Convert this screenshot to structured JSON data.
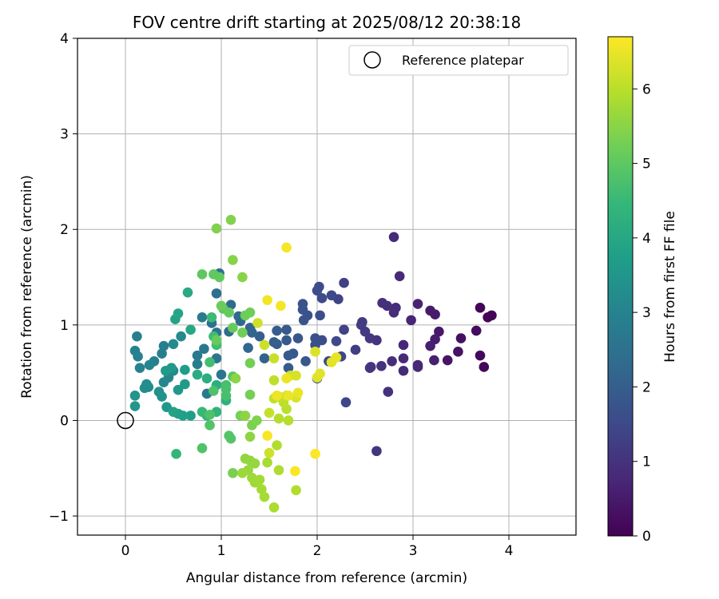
{
  "chart_data": {
    "type": "scatter",
    "title": "FOV centre drift starting at 2025/08/12 20:38:18",
    "xlabel": "Angular distance from reference (arcmin)",
    "ylabel": "Rotation from reference (arcmin)",
    "xlim": [
      -0.5,
      4.7
    ],
    "ylim": [
      -1.2,
      4.0
    ],
    "xticks": [
      "0",
      "1",
      "2",
      "3",
      "4"
    ],
    "yticks": [
      "−1",
      "0",
      "1",
      "2",
      "3",
      "4"
    ],
    "grid": true,
    "legend": {
      "placement": "top-right",
      "entries": [
        "Reference platepar"
      ]
    },
    "reference_point": {
      "x": 0,
      "y": 0
    },
    "colorbar": {
      "label": "Hours from first FF file",
      "range": [
        0,
        6.7
      ],
      "ticks": [
        "0",
        "1",
        "2",
        "3",
        "4",
        "5",
        "6"
      ],
      "colormap": [
        "#440154",
        "#482777",
        "#3e4989",
        "#31688e",
        "#26828e",
        "#1f9e89",
        "#35b779",
        "#6ece58",
        "#b5de2b",
        "#fde725"
      ]
    },
    "points": [
      {
        "x": 3.82,
        "y": 1.1,
        "t": 0.05
      },
      {
        "x": 3.78,
        "y": 1.08,
        "t": 0.08
      },
      {
        "x": 3.7,
        "y": 1.18,
        "t": 0.1
      },
      {
        "x": 3.74,
        "y": 0.56,
        "t": 0.12
      },
      {
        "x": 3.7,
        "y": 0.68,
        "t": 0.15
      },
      {
        "x": 3.66,
        "y": 0.94,
        "t": 0.2
      },
      {
        "x": 3.5,
        "y": 0.86,
        "t": 0.3
      },
      {
        "x": 3.47,
        "y": 0.72,
        "t": 0.35
      },
      {
        "x": 3.36,
        "y": 0.63,
        "t": 0.4
      },
      {
        "x": 3.27,
        "y": 0.93,
        "t": 0.45
      },
      {
        "x": 3.23,
        "y": 1.11,
        "t": 0.48
      },
      {
        "x": 3.18,
        "y": 1.15,
        "t": 0.5
      },
      {
        "x": 3.23,
        "y": 0.85,
        "t": 0.55
      },
      {
        "x": 3.18,
        "y": 0.78,
        "t": 0.6
      },
      {
        "x": 3.22,
        "y": 0.63,
        "t": 0.62
      },
      {
        "x": 3.05,
        "y": 1.22,
        "t": 0.66
      },
      {
        "x": 2.98,
        "y": 1.05,
        "t": 0.7
      },
      {
        "x": 3.05,
        "y": 0.58,
        "t": 0.72
      },
      {
        "x": 3.05,
        "y": 0.56,
        "t": 0.74
      },
      {
        "x": 2.9,
        "y": 0.79,
        "t": 0.76
      },
      {
        "x": 2.9,
        "y": 0.65,
        "t": 0.78
      },
      {
        "x": 2.9,
        "y": 0.52,
        "t": 0.8
      },
      {
        "x": 2.8,
        "y": 1.92,
        "t": 0.82
      },
      {
        "x": 2.86,
        "y": 1.51,
        "t": 0.84
      },
      {
        "x": 2.82,
        "y": 1.18,
        "t": 0.86
      },
      {
        "x": 2.8,
        "y": 1.13,
        "t": 0.88
      },
      {
        "x": 2.78,
        "y": 0.62,
        "t": 0.9
      },
      {
        "x": 2.68,
        "y": 1.23,
        "t": 0.92
      },
      {
        "x": 2.73,
        "y": 1.2,
        "t": 0.94
      },
      {
        "x": 2.67,
        "y": 0.57,
        "t": 0.96
      },
      {
        "x": 2.74,
        "y": 0.3,
        "t": 0.98
      },
      {
        "x": 2.62,
        "y": 0.84,
        "t": 1.0
      },
      {
        "x": 2.56,
        "y": 0.56,
        "t": 1.02
      },
      {
        "x": 2.55,
        "y": 0.55,
        "t": 1.05
      },
      {
        "x": 2.62,
        "y": -0.32,
        "t": 1.08
      },
      {
        "x": 2.55,
        "y": 0.86,
        "t": 1.12
      },
      {
        "x": 2.5,
        "y": 0.93,
        "t": 1.15
      },
      {
        "x": 2.47,
        "y": 1.03,
        "t": 1.18
      },
      {
        "x": 2.46,
        "y": 1.0,
        "t": 1.2
      },
      {
        "x": 2.4,
        "y": 0.74,
        "t": 1.24
      },
      {
        "x": 2.28,
        "y": 1.44,
        "t": 1.3
      },
      {
        "x": 2.28,
        "y": 0.95,
        "t": 1.35
      },
      {
        "x": 2.22,
        "y": 1.27,
        "t": 1.38
      },
      {
        "x": 2.25,
        "y": 0.67,
        "t": 1.4
      },
      {
        "x": 2.3,
        "y": 0.19,
        "t": 1.45
      },
      {
        "x": 2.2,
        "y": 0.83,
        "t": 1.48
      },
      {
        "x": 2.15,
        "y": 1.31,
        "t": 1.5
      },
      {
        "x": 2.12,
        "y": 0.62,
        "t": 1.52
      },
      {
        "x": 2.05,
        "y": 1.28,
        "t": 1.54
      },
      {
        "x": 2.02,
        "y": 1.4,
        "t": 1.56
      },
      {
        "x": 2.0,
        "y": 1.36,
        "t": 1.58
      },
      {
        "x": 2.03,
        "y": 1.1,
        "t": 1.6
      },
      {
        "x": 2.05,
        "y": 0.84,
        "t": 1.62
      },
      {
        "x": 1.98,
        "y": 0.86,
        "t": 1.64
      },
      {
        "x": 1.98,
        "y": 0.79,
        "t": 1.66
      },
      {
        "x": 2.0,
        "y": 0.44,
        "t": 1.68
      },
      {
        "x": 1.9,
        "y": 1.1,
        "t": 1.7
      },
      {
        "x": 1.85,
        "y": 1.22,
        "t": 1.72
      },
      {
        "x": 1.85,
        "y": 1.16,
        "t": 1.74
      },
      {
        "x": 1.86,
        "y": 1.05,
        "t": 1.76
      },
      {
        "x": 1.8,
        "y": 0.86,
        "t": 1.8
      },
      {
        "x": 1.88,
        "y": 0.62,
        "t": 1.82
      },
      {
        "x": 1.75,
        "y": 0.7,
        "t": 1.85
      },
      {
        "x": 1.68,
        "y": 0.95,
        "t": 1.88
      },
      {
        "x": 1.68,
        "y": 0.84,
        "t": 1.9
      },
      {
        "x": 1.7,
        "y": 0.68,
        "t": 1.92
      },
      {
        "x": 1.7,
        "y": 0.55,
        "t": 1.94
      },
      {
        "x": 1.58,
        "y": 0.94,
        "t": 1.96
      },
      {
        "x": 1.58,
        "y": 0.8,
        "t": 1.98
      },
      {
        "x": 1.55,
        "y": 0.82,
        "t": 2.0
      },
      {
        "x": 1.4,
        "y": 0.88,
        "t": 2.05
      },
      {
        "x": 1.45,
        "y": 0.65,
        "t": 2.1
      },
      {
        "x": 1.32,
        "y": 0.92,
        "t": 2.15
      },
      {
        "x": 1.3,
        "y": 0.97,
        "t": 2.18
      },
      {
        "x": 1.28,
        "y": 0.76,
        "t": 2.2
      },
      {
        "x": 1.2,
        "y": 1.04,
        "t": 2.25
      },
      {
        "x": 1.18,
        "y": 1.09,
        "t": 2.28
      },
      {
        "x": 1.1,
        "y": 1.21,
        "t": 2.3
      },
      {
        "x": 1.08,
        "y": 0.93,
        "t": 2.35
      },
      {
        "x": 0.98,
        "y": 1.54,
        "t": 2.4
      },
      {
        "x": 0.95,
        "y": 1.33,
        "t": 2.45
      },
      {
        "x": 0.9,
        "y": 1.02,
        "t": 2.5
      },
      {
        "x": 0.95,
        "y": 0.92,
        "t": 2.55
      },
      {
        "x": 1.0,
        "y": 0.48,
        "t": 2.6
      },
      {
        "x": 0.95,
        "y": 0.65,
        "t": 2.62
      },
      {
        "x": 0.85,
        "y": 0.28,
        "t": 2.65
      },
      {
        "x": 0.82,
        "y": 0.75,
        "t": 2.7
      },
      {
        "x": 0.75,
        "y": 0.68,
        "t": 2.75
      },
      {
        "x": 0.75,
        "y": 0.59,
        "t": 2.8
      },
      {
        "x": 0.8,
        "y": 1.08,
        "t": 2.82
      },
      {
        "x": 0.4,
        "y": 0.78,
        "t": 2.85
      },
      {
        "x": 0.38,
        "y": 0.7,
        "t": 2.88
      },
      {
        "x": 0.3,
        "y": 0.62,
        "t": 2.9
      },
      {
        "x": 0.12,
        "y": 0.88,
        "t": 2.92
      },
      {
        "x": 0.1,
        "y": 0.73,
        "t": 2.95
      },
      {
        "x": 0.13,
        "y": 0.67,
        "t": 2.98
      },
      {
        "x": 0.15,
        "y": 0.55,
        "t": 3.0
      },
      {
        "x": 0.25,
        "y": 0.58,
        "t": 3.05
      },
      {
        "x": 0.4,
        "y": 0.4,
        "t": 3.1
      },
      {
        "x": 0.45,
        "y": 0.45,
        "t": 3.12
      },
      {
        "x": 0.5,
        "y": 0.52,
        "t": 3.15
      },
      {
        "x": 0.58,
        "y": 0.88,
        "t": 3.18
      },
      {
        "x": 0.5,
        "y": 0.8,
        "t": 3.2
      },
      {
        "x": 0.2,
        "y": 0.34,
        "t": 3.25
      },
      {
        "x": 0.24,
        "y": 0.35,
        "t": 3.28
      },
      {
        "x": 0.22,
        "y": 0.38,
        "t": 3.3
      },
      {
        "x": 0.35,
        "y": 0.3,
        "t": 3.35
      },
      {
        "x": 0.38,
        "y": 0.25,
        "t": 3.4
      },
      {
        "x": 0.1,
        "y": 0.26,
        "t": 3.45
      },
      {
        "x": 0.1,
        "y": 0.15,
        "t": 3.5
      },
      {
        "x": 0.43,
        "y": 0.14,
        "t": 3.52
      },
      {
        "x": 0.55,
        "y": 0.32,
        "t": 3.55
      },
      {
        "x": 0.48,
        "y": 0.55,
        "t": 3.6
      },
      {
        "x": 0.42,
        "y": 0.52,
        "t": 3.62
      },
      {
        "x": 0.62,
        "y": 0.38,
        "t": 3.65
      },
      {
        "x": 0.62,
        "y": 0.53,
        "t": 3.7
      },
      {
        "x": 0.68,
        "y": 0.05,
        "t": 3.75
      },
      {
        "x": 0.6,
        "y": 0.05,
        "t": 3.78
      },
      {
        "x": 0.55,
        "y": 0.07,
        "t": 3.8
      },
      {
        "x": 0.5,
        "y": 0.09,
        "t": 3.85
      },
      {
        "x": 0.52,
        "y": 1.06,
        "t": 3.9
      },
      {
        "x": 0.55,
        "y": 1.12,
        "t": 3.92
      },
      {
        "x": 0.68,
        "y": 0.95,
        "t": 4.0
      },
      {
        "x": 0.65,
        "y": 1.34,
        "t": 4.05
      },
      {
        "x": 0.75,
        "y": 0.48,
        "t": 4.1
      },
      {
        "x": 0.85,
        "y": 0.44,
        "t": 4.15
      },
      {
        "x": 0.95,
        "y": 0.37,
        "t": 4.2
      },
      {
        "x": 1.05,
        "y": 0.21,
        "t": 4.25
      },
      {
        "x": 0.85,
        "y": 0.05,
        "t": 4.3
      },
      {
        "x": 0.95,
        "y": 0.09,
        "t": 4.35
      },
      {
        "x": 0.53,
        "y": -0.35,
        "t": 4.4
      },
      {
        "x": 0.8,
        "y": 0.09,
        "t": 4.5
      },
      {
        "x": 0.9,
        "y": 1.08,
        "t": 4.55
      },
      {
        "x": 0.92,
        "y": 0.88,
        "t": 4.6
      },
      {
        "x": 0.95,
        "y": 0.79,
        "t": 4.62
      },
      {
        "x": 0.88,
        "y": 0.61,
        "t": 4.65
      },
      {
        "x": 1.05,
        "y": 0.37,
        "t": 4.7
      },
      {
        "x": 1.05,
        "y": 0.26,
        "t": 4.72
      },
      {
        "x": 1.05,
        "y": 0.33,
        "t": 4.75
      },
      {
        "x": 0.92,
        "y": 0.31,
        "t": 4.78
      },
      {
        "x": 0.88,
        "y": 0.06,
        "t": 4.8
      },
      {
        "x": 0.8,
        "y": -0.29,
        "t": 4.82
      },
      {
        "x": 0.88,
        "y": -0.05,
        "t": 4.85
      },
      {
        "x": 1.08,
        "y": -0.16,
        "t": 4.88
      },
      {
        "x": 1.1,
        "y": -0.19,
        "t": 4.9
      },
      {
        "x": 1.12,
        "y": 0.46,
        "t": 4.92
      },
      {
        "x": 1.02,
        "y": 1.17,
        "t": 4.95
      },
      {
        "x": 0.8,
        "y": 1.53,
        "t": 5.0
      },
      {
        "x": 0.92,
        "y": 1.53,
        "t": 5.02
      },
      {
        "x": 0.98,
        "y": 1.5,
        "t": 5.05
      },
      {
        "x": 1.08,
        "y": 1.13,
        "t": 5.08
      },
      {
        "x": 1.12,
        "y": 0.97,
        "t": 5.1
      },
      {
        "x": 0.95,
        "y": 0.84,
        "t": 5.12
      },
      {
        "x": 1.0,
        "y": 1.2,
        "t": 5.15
      },
      {
        "x": 1.25,
        "y": 1.1,
        "t": 5.18
      },
      {
        "x": 1.3,
        "y": 1.13,
        "t": 5.2
      },
      {
        "x": 1.22,
        "y": 0.92,
        "t": 5.22
      },
      {
        "x": 1.3,
        "y": 0.6,
        "t": 5.25
      },
      {
        "x": 1.3,
        "y": 0.27,
        "t": 5.28
      },
      {
        "x": 1.2,
        "y": 0.05,
        "t": 5.3
      },
      {
        "x": 1.12,
        "y": -0.55,
        "t": 5.32
      },
      {
        "x": 1.32,
        "y": -0.05,
        "t": 5.35
      },
      {
        "x": 1.37,
        "y": 0.0,
        "t": 5.38
      },
      {
        "x": 0.95,
        "y": 2.01,
        "t": 5.4
      },
      {
        "x": 1.1,
        "y": 2.1,
        "t": 5.42
      },
      {
        "x": 1.12,
        "y": 1.68,
        "t": 5.45
      },
      {
        "x": 1.22,
        "y": 1.5,
        "t": 5.48
      },
      {
        "x": 1.15,
        "y": 0.44,
        "t": 5.5
      },
      {
        "x": 1.25,
        "y": 0.05,
        "t": 5.52
      },
      {
        "x": 1.3,
        "y": -0.17,
        "t": 5.55
      },
      {
        "x": 1.25,
        "y": -0.4,
        "t": 5.58
      },
      {
        "x": 1.3,
        "y": -0.42,
        "t": 5.6
      },
      {
        "x": 1.35,
        "y": -0.45,
        "t": 5.62
      },
      {
        "x": 1.28,
        "y": -0.52,
        "t": 5.65
      },
      {
        "x": 1.22,
        "y": -0.55,
        "t": 5.68
      },
      {
        "x": 1.32,
        "y": -0.6,
        "t": 5.7
      },
      {
        "x": 1.35,
        "y": -0.65,
        "t": 5.72
      },
      {
        "x": 1.4,
        "y": -0.62,
        "t": 5.75
      },
      {
        "x": 1.42,
        "y": -0.72,
        "t": 5.78
      },
      {
        "x": 1.45,
        "y": -0.8,
        "t": 5.8
      },
      {
        "x": 1.48,
        "y": -0.44,
        "t": 5.82
      },
      {
        "x": 1.55,
        "y": -0.91,
        "t": 5.85
      },
      {
        "x": 1.6,
        "y": -0.52,
        "t": 5.88
      },
      {
        "x": 1.58,
        "y": -0.26,
        "t": 5.9
      },
      {
        "x": 1.78,
        "y": -0.73,
        "t": 5.92
      },
      {
        "x": 1.6,
        "y": 0.02,
        "t": 5.95
      },
      {
        "x": 1.7,
        "y": 0.0,
        "t": 5.98
      },
      {
        "x": 1.68,
        "y": 0.12,
        "t": 6.0
      },
      {
        "x": 1.65,
        "y": 0.19,
        "t": 6.02
      },
      {
        "x": 1.55,
        "y": 0.42,
        "t": 6.05
      },
      {
        "x": 1.55,
        "y": 0.23,
        "t": 6.08
      },
      {
        "x": 1.6,
        "y": 0.25,
        "t": 6.1
      },
      {
        "x": 1.5,
        "y": 0.08,
        "t": 6.12
      },
      {
        "x": 1.55,
        "y": 0.65,
        "t": 6.15
      },
      {
        "x": 1.45,
        "y": 0.79,
        "t": 6.18
      },
      {
        "x": 1.5,
        "y": -0.34,
        "t": 6.2
      },
      {
        "x": 1.38,
        "y": 1.02,
        "t": 6.22
      },
      {
        "x": 1.72,
        "y": 0.47,
        "t": 6.25
      },
      {
        "x": 1.68,
        "y": 0.26,
        "t": 6.28
      },
      {
        "x": 1.78,
        "y": 0.47,
        "t": 6.3
      },
      {
        "x": 1.78,
        "y": 0.24,
        "t": 6.32
      },
      {
        "x": 1.98,
        "y": 0.72,
        "t": 6.35
      },
      {
        "x": 2.0,
        "y": 0.45,
        "t": 6.38
      },
      {
        "x": 2.03,
        "y": 0.49,
        "t": 6.4
      },
      {
        "x": 2.15,
        "y": 0.61,
        "t": 6.42
      },
      {
        "x": 2.2,
        "y": 0.66,
        "t": 6.45
      },
      {
        "x": 1.8,
        "y": 0.29,
        "t": 6.48
      },
      {
        "x": 1.7,
        "y": 0.26,
        "t": 6.5
      },
      {
        "x": 1.68,
        "y": 0.44,
        "t": 6.52
      },
      {
        "x": 1.58,
        "y": 0.26,
        "t": 6.55
      },
      {
        "x": 1.48,
        "y": 1.26,
        "t": 6.58
      },
      {
        "x": 1.62,
        "y": 1.2,
        "t": 6.6
      },
      {
        "x": 1.68,
        "y": 1.81,
        "t": 6.62
      },
      {
        "x": 1.48,
        "y": -0.16,
        "t": 6.64
      },
      {
        "x": 1.77,
        "y": -0.53,
        "t": 6.66
      },
      {
        "x": 1.98,
        "y": -0.35,
        "t": 6.68
      }
    ]
  }
}
